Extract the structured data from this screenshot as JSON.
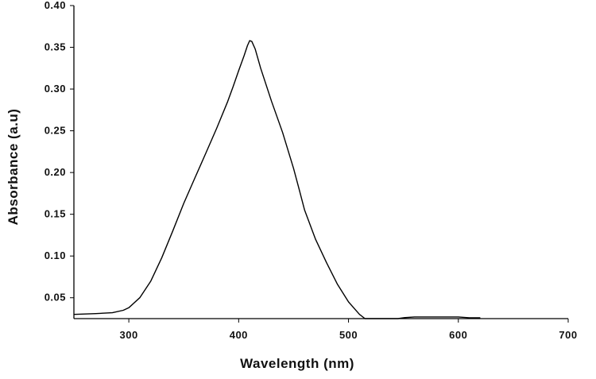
{
  "chart_data": {
    "type": "line",
    "title": "",
    "xlabel": "Wavelength (nm)",
    "ylabel": "Absorbance (a.u)",
    "xlim": [
      250,
      700
    ],
    "ylim": [
      0.025,
      0.4
    ],
    "xticks": [
      300,
      400,
      500,
      600,
      700
    ],
    "xtick_labels": [
      "300",
      "400",
      "500",
      "600",
      "700"
    ],
    "yticks": [
      0.05,
      0.1,
      0.15,
      0.2,
      0.25,
      0.3,
      0.35,
      0.4
    ],
    "ytick_labels": [
      "0.05",
      "0.10",
      "0.15",
      "0.20",
      "0.25",
      "0.30",
      "0.35",
      "0.40"
    ],
    "grid": false,
    "legend": "none",
    "line_color": "#000000",
    "series": [
      {
        "x": [
          250,
          270,
          285,
          295,
          300,
          310,
          320,
          330,
          340,
          350,
          360,
          370,
          380,
          390,
          395,
          400,
          405,
          408,
          410,
          412,
          415,
          420,
          430,
          440,
          450,
          455,
          460,
          470,
          480,
          490,
          500,
          510,
          515,
          530,
          545,
          550,
          560,
          580,
          600,
          610,
          620
        ],
        "y": [
          0.03,
          0.031,
          0.032,
          0.035,
          0.038,
          0.05,
          0.07,
          0.098,
          0.13,
          0.163,
          0.193,
          0.223,
          0.253,
          0.285,
          0.303,
          0.322,
          0.34,
          0.352,
          0.358,
          0.357,
          0.348,
          0.325,
          0.285,
          0.248,
          0.205,
          0.18,
          0.155,
          0.12,
          0.092,
          0.066,
          0.045,
          0.03,
          0.025,
          0.025,
          0.025,
          0.026,
          0.027,
          0.027,
          0.027,
          0.026,
          0.026
        ]
      }
    ]
  }
}
